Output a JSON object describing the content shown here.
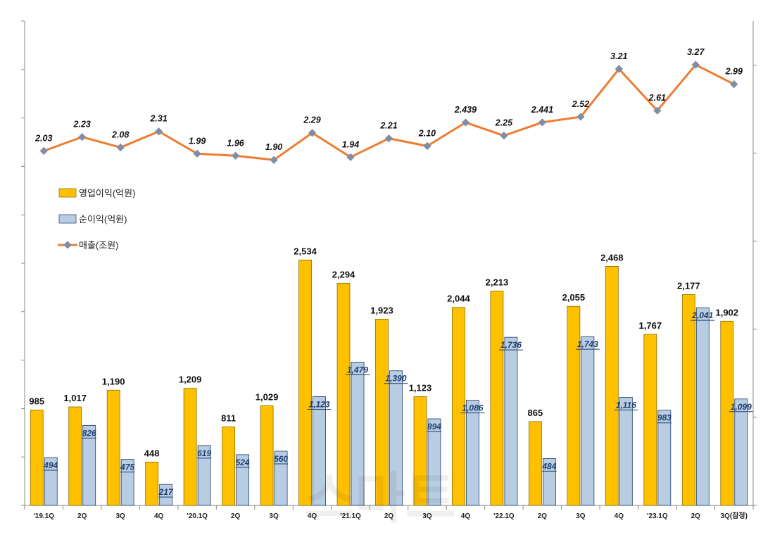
{
  "chart_data": {
    "type": "bar",
    "categories": [
      "'19.1Q",
      "2Q",
      "3Q",
      "4Q",
      "'20.1Q",
      "2Q",
      "3Q",
      "4Q",
      "'21.1Q",
      "2Q",
      "3Q",
      "4Q",
      "'22.1Q",
      "2Q",
      "3Q",
      "4Q",
      "'23.1Q",
      "2Q",
      "3Q(잠정)"
    ],
    "series": [
      {
        "name": "영업이익(억원)",
        "kind": "bar",
        "color": "#FFC000",
        "values": [
          985,
          1017,
          1190,
          448,
          1209,
          811,
          1029,
          2534,
          2294,
          1923,
          1123,
          2044,
          2213,
          865,
          2055,
          2468,
          1767,
          2177,
          1902
        ],
        "labels": [
          "985",
          "1,017",
          "1,190",
          "448",
          "1,209",
          "811",
          "1,029",
          "2,534",
          "2,294",
          "1,923",
          "1,123",
          "2,044",
          "2,213",
          "865",
          "2,055",
          "2,468",
          "1,767",
          "2,177",
          "1,902"
        ]
      },
      {
        "name": "순이익(억원)",
        "kind": "bar",
        "color": "#B8CCE4",
        "values": [
          494,
          826,
          475,
          217,
          619,
          524,
          560,
          1123,
          1479,
          1390,
          894,
          1086,
          1736,
          484,
          1743,
          1116,
          983,
          2041,
          1099
        ],
        "labels": [
          "494",
          "826",
          "475",
          "217",
          "619",
          "524",
          "560",
          "1,123",
          "1,479",
          "1,390",
          "894",
          "1,086",
          "1,736",
          "484",
          "1,743",
          "1,116",
          "983",
          "2,041",
          "1,099"
        ]
      },
      {
        "name": "매출(조원)",
        "kind": "line",
        "color": "#ED7D31",
        "values": [
          2.03,
          2.23,
          2.08,
          2.31,
          1.99,
          1.96,
          1.9,
          2.29,
          1.94,
          2.21,
          2.1,
          2.439,
          2.25,
          2.441,
          2.52,
          3.21,
          2.61,
          3.27,
          2.99
        ],
        "labels": [
          "2.03",
          "2.23",
          "2.08",
          "2.31",
          "1.99",
          "1.96",
          "1.90",
          "2.29",
          "1.94",
          "2.21",
          "2.10",
          "2.439",
          "2.25",
          "2.441",
          "2.52",
          "3.21",
          "2.61",
          "3.27",
          "2.99"
        ]
      }
    ],
    "title": "",
    "xlabel": "",
    "ylabel": "",
    "ylim_left": [
      0,
      5000
    ],
    "ylim_right": [
      0,
      5.5
    ],
    "grid": false,
    "legend": "left-middle"
  },
  "watermark": "스마트"
}
